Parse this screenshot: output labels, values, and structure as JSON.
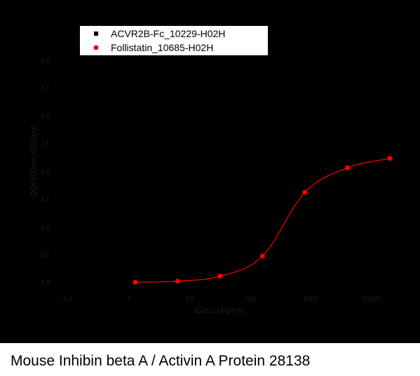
{
  "chart_data": {
    "type": "scatter-fit",
    "caption": "Mouse Inhibin beta A / Activin A Protein 28138",
    "x_label": "Conc.(ng/ml)",
    "y_label": "OD(450nm-630nm)",
    "x_scale": "log",
    "xlim": [
      0.1,
      20000
    ],
    "xticks": [
      0.1,
      1,
      10,
      100,
      1000,
      10000
    ],
    "ylim": [
      -0.2,
      4.2
    ],
    "yticks": [
      {
        "value": 0,
        "label": "0.0"
      },
      0.5,
      {
        "value": 1,
        "label": "1.0"
      },
      1.5,
      {
        "value": 2,
        "label": "2.0"
      },
      2.5,
      {
        "value": 3,
        "label": "3.0"
      },
      3.5,
      {
        "value": 4,
        "label": "4.0"
      }
    ],
    "legend": "top-left",
    "series": [
      {
        "name": "ACVR2B-Fc_10229-H02H",
        "color": "#000000",
        "marker": "square"
      },
      {
        "name": "Follistatin_10685-H02H",
        "color": "#ff0000",
        "marker": "circle",
        "x": [
          1.28,
          6.4,
          32,
          160,
          800,
          4000,
          20000
        ],
        "values": [
          0.0,
          0.02,
          0.11,
          0.47,
          1.62,
          2.06,
          2.23
        ]
      }
    ]
  }
}
